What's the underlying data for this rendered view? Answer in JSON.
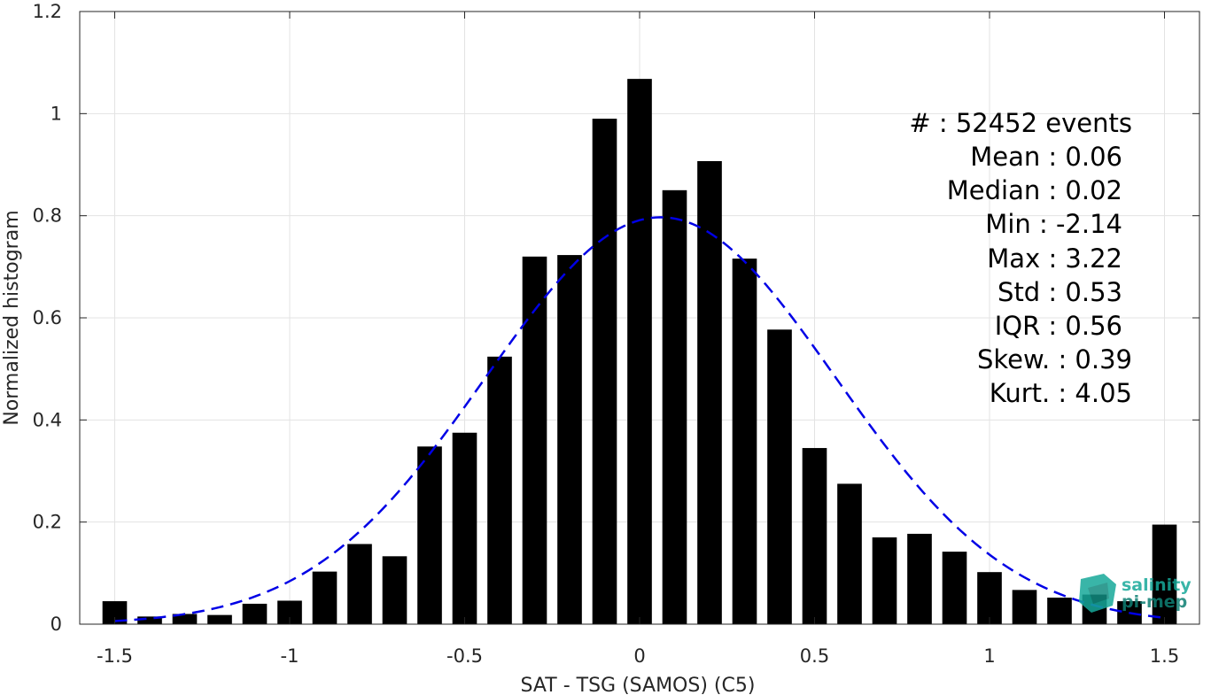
{
  "chart_data": {
    "type": "bar",
    "title": "",
    "xlabel": "SAT - TSG (SAMOS) (C5)",
    "ylabel": "Normalized histogram",
    "xlim": [
      -1.6,
      1.6
    ],
    "ylim": [
      0,
      1.2
    ],
    "grid": true,
    "x_ticks": [
      -1.5,
      -1,
      -0.5,
      0,
      0.5,
      1,
      1.5
    ],
    "x_tick_labels": [
      "-1.5",
      "-1",
      "-0.5",
      "0",
      "0.5",
      "1",
      "1.5"
    ],
    "y_ticks": [
      0,
      0.2,
      0.4,
      0.6,
      0.8,
      1,
      1.2
    ],
    "y_tick_labels": [
      "0",
      "0.2",
      "0.4",
      "0.6",
      "0.8",
      "1",
      "1.2"
    ],
    "bin_width": 0.1,
    "bar_color": "#000000",
    "x": [
      -1.5,
      -1.4,
      -1.3,
      -1.2,
      -1.1,
      -1.0,
      -0.9,
      -0.8,
      -0.7,
      -0.6,
      -0.5,
      -0.4,
      -0.3,
      -0.2,
      -0.1,
      0.0,
      0.1,
      0.2,
      0.3,
      0.4,
      0.5,
      0.6,
      0.7,
      0.8,
      0.9,
      1.0,
      1.1,
      1.2,
      1.3,
      1.4,
      1.5
    ],
    "values": [
      0.045,
      0.015,
      0.02,
      0.018,
      0.04,
      0.046,
      0.103,
      0.157,
      0.133,
      0.348,
      0.375,
      0.524,
      0.72,
      0.723,
      0.99,
      1.068,
      0.85,
      0.907,
      0.716,
      0.577,
      0.345,
      0.275,
      0.17,
      0.177,
      0.142,
      0.102,
      0.067,
      0.052,
      0.058,
      0.045,
      0.195
    ],
    "fit": {
      "type": "gaussian",
      "mean": 0.06,
      "std": 0.5,
      "peak": 0.797,
      "x_range": [
        -1.5,
        1.5
      ],
      "color": "#0000e6",
      "style": "dashed"
    },
    "stats": [
      {
        "label": "#  : 52452 events"
      },
      {
        "label": "Mean : 0.06"
      },
      {
        "label": "Median : 0.02"
      },
      {
        "label": "Min : -2.14"
      },
      {
        "label": "Max : 3.22"
      },
      {
        "label": "Std : 0.53"
      },
      {
        "label": "IQR : 0.56"
      },
      {
        "label": "Skew. : 0.39"
      },
      {
        "label": "Kurt. : 4.05"
      }
    ]
  },
  "logo": {
    "line1": "salinity",
    "line2": "pi-mep",
    "color": "#17a99a"
  }
}
